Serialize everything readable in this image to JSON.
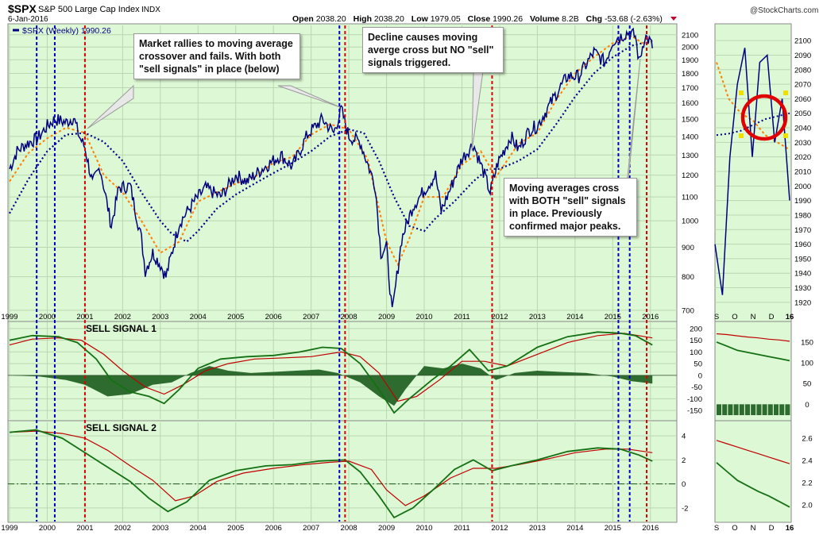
{
  "header": {
    "symbol": "$SPX",
    "name": "S&P 500 Large Cap Index",
    "exchange": "INDX",
    "date": "6-Jan-2016",
    "open_label": "Open",
    "open": "2038.20",
    "high_label": "High",
    "high": "2038.20",
    "low_label": "Low",
    "low": "1979.05",
    "close_label": "Close",
    "close": "1990.26",
    "volume_label": "Volume",
    "volume": "8.2B",
    "chg_label": "Chg",
    "chg": "-53.68 (-2.63%)",
    "watermark": "@StockCharts.com",
    "legend": "$SPX (Weekly) 1990.26"
  },
  "callouts": {
    "c1": "Market rallies to moving average crossover and fails. With both \"sell signals\" in place (below)",
    "c2": "Decline causes moving averge cross but NO \"sell\" signals triggered.",
    "c3": "Moving averages cross with BOTH \"sell\" signals in place. Previously confirmed major peaks."
  },
  "chart_data": [
    {
      "type": "line",
      "id": "price",
      "scale": "log",
      "ylim": [
        680,
        2180
      ],
      "yticks": [
        700,
        800,
        900,
        1000,
        1100,
        1200,
        1300,
        1400,
        1500,
        1600,
        1700,
        1800,
        1900,
        2000,
        2100
      ],
      "x_labels": [
        "1999",
        "2000",
        "2001",
        "2002",
        "2003",
        "2004",
        "2005",
        "2006",
        "2007",
        "2008",
        "2009",
        "2010",
        "2011",
        "2012",
        "2013",
        "2014",
        "2015",
        "2016"
      ],
      "x_range": [
        1999.0,
        2016.7
      ],
      "price_points": [
        [
          1999.0,
          1230
        ],
        [
          1999.2,
          1320
        ],
        [
          1999.45,
          1360
        ],
        [
          1999.75,
          1390
        ],
        [
          2000.0,
          1460
        ],
        [
          2000.2,
          1500
        ],
        [
          2000.5,
          1480
        ],
        [
          2000.7,
          1510
        ],
        [
          2000.85,
          1400
        ],
        [
          2001.0,
          1340
        ],
        [
          2001.2,
          1160
        ],
        [
          2001.4,
          1240
        ],
        [
          2001.7,
          980
        ],
        [
          2001.9,
          1140
        ],
        [
          2002.2,
          1150
        ],
        [
          2002.5,
          930
        ],
        [
          2002.6,
          820
        ],
        [
          2002.8,
          880
        ],
        [
          2003.0,
          840
        ],
        [
          2003.15,
          800
        ],
        [
          2003.5,
          990
        ],
        [
          2003.9,
          1080
        ],
        [
          2004.2,
          1140
        ],
        [
          2004.6,
          1100
        ],
        [
          2005.0,
          1200
        ],
        [
          2005.3,
          1170
        ],
        [
          2005.7,
          1230
        ],
        [
          2006.2,
          1300
        ],
        [
          2006.5,
          1240
        ],
        [
          2006.9,
          1410
        ],
        [
          2007.3,
          1500
        ],
        [
          2007.6,
          1420
        ],
        [
          2007.8,
          1560
        ],
        [
          2008.0,
          1400
        ],
        [
          2008.3,
          1370
        ],
        [
          2008.7,
          1150
        ],
        [
          2008.85,
          880
        ],
        [
          2009.0,
          900
        ],
        [
          2009.15,
          690
        ],
        [
          2009.4,
          930
        ],
        [
          2009.7,
          1060
        ],
        [
          2010.0,
          1130
        ],
        [
          2010.3,
          1200
        ],
        [
          2010.45,
          1040
        ],
        [
          2010.7,
          1140
        ],
        [
          2011.0,
          1280
        ],
        [
          2011.3,
          1360
        ],
        [
          2011.6,
          1200
        ],
        [
          2011.75,
          1120
        ],
        [
          2011.95,
          1260
        ],
        [
          2012.3,
          1400
        ],
        [
          2012.5,
          1330
        ],
        [
          2012.8,
          1440
        ],
        [
          2013.0,
          1460
        ],
        [
          2013.5,
          1660
        ],
        [
          2013.8,
          1780
        ],
        [
          2014.1,
          1780
        ],
        [
          2014.5,
          1960
        ],
        [
          2014.8,
          1880
        ],
        [
          2015.0,
          2050
        ],
        [
          2015.4,
          2120
        ],
        [
          2015.6,
          2090
        ],
        [
          2015.7,
          1880
        ],
        [
          2015.85,
          2090
        ],
        [
          2016.0,
          2040
        ],
        [
          2016.05,
          1990
        ]
      ],
      "ma_short_points": [
        [
          1999.0,
          1170
        ],
        [
          1999.5,
          1310
        ],
        [
          2000.0,
          1390
        ],
        [
          2000.5,
          1450
        ],
        [
          2001.0,
          1420
        ],
        [
          2001.5,
          1200
        ],
        [
          2002.0,
          1120
        ],
        [
          2002.5,
          1000
        ],
        [
          2003.0,
          880
        ],
        [
          2003.5,
          920
        ],
        [
          2004.0,
          1080
        ],
        [
          2004.5,
          1120
        ],
        [
          2005.0,
          1160
        ],
        [
          2005.5,
          1190
        ],
        [
          2006.0,
          1260
        ],
        [
          2006.5,
          1290
        ],
        [
          2007.0,
          1410
        ],
        [
          2007.5,
          1470
        ],
        [
          2008.0,
          1440
        ],
        [
          2008.5,
          1280
        ],
        [
          2009.0,
          920
        ],
        [
          2009.3,
          840
        ],
        [
          2009.6,
          930
        ],
        [
          2010.0,
          1100
        ],
        [
          2010.5,
          1100
        ],
        [
          2011.0,
          1250
        ],
        [
          2011.5,
          1320
        ],
        [
          2011.9,
          1190
        ],
        [
          2012.5,
          1360
        ],
        [
          2013.0,
          1420
        ],
        [
          2013.5,
          1620
        ],
        [
          2014.0,
          1800
        ],
        [
          2014.5,
          1920
        ],
        [
          2015.0,
          2030
        ],
        [
          2015.5,
          2090
        ],
        [
          2015.8,
          2030
        ],
        [
          2016.05,
          2045
        ]
      ],
      "ma_long_points": [
        [
          1999.0,
          1030
        ],
        [
          1999.5,
          1180
        ],
        [
          2000.0,
          1320
        ],
        [
          2000.5,
          1410
        ],
        [
          2001.0,
          1420
        ],
        [
          2001.5,
          1370
        ],
        [
          2002.0,
          1270
        ],
        [
          2002.5,
          1120
        ],
        [
          2003.0,
          1000
        ],
        [
          2003.3,
          950
        ],
        [
          2003.7,
          920
        ],
        [
          2004.0,
          960
        ],
        [
          2004.5,
          1050
        ],
        [
          2005.0,
          1110
        ],
        [
          2005.5,
          1160
        ],
        [
          2006.0,
          1210
        ],
        [
          2006.5,
          1260
        ],
        [
          2007.0,
          1320
        ],
        [
          2007.5,
          1400
        ],
        [
          2008.0,
          1440
        ],
        [
          2008.4,
          1420
        ],
        [
          2008.8,
          1270
        ],
        [
          2009.2,
          1100
        ],
        [
          2009.6,
          980
        ],
        [
          2010.0,
          960
        ],
        [
          2010.3,
          1010
        ],
        [
          2010.8,
          1080
        ],
        [
          2011.3,
          1170
        ],
        [
          2011.7,
          1230
        ],
        [
          2012.0,
          1230
        ],
        [
          2012.5,
          1270
        ],
        [
          2013.0,
          1330
        ],
        [
          2013.5,
          1470
        ],
        [
          2014.0,
          1640
        ],
        [
          2014.5,
          1800
        ],
        [
          2015.0,
          1920
        ],
        [
          2015.5,
          2010
        ],
        [
          2016.05,
          2050
        ]
      ],
      "blue_lines": [
        1999.72,
        2000.2,
        2007.75,
        2015.15,
        2015.45
      ],
      "red_lines": [
        2001.0,
        2007.9,
        2011.8,
        2015.9
      ]
    },
    {
      "type": "line",
      "id": "price_zoom",
      "ylim": [
        1915,
        2105
      ],
      "yticks": [
        1920,
        1930,
        1940,
        1950,
        1960,
        1970,
        1980,
        1990,
        2000,
        2010,
        2020,
        2030,
        2040,
        2050,
        2060,
        2070,
        2080,
        2090,
        2100
      ],
      "x_labels": [
        "S",
        "O",
        "N",
        "D",
        "16"
      ],
      "price": [
        1960,
        1925,
        2020,
        2070,
        2095,
        2020,
        2085,
        2090,
        2030,
        2060,
        1990
      ],
      "ma_short": [
        2085,
        2060,
        2050,
        2045,
        2035,
        2030,
        2025
      ],
      "ma_long": [
        2035,
        2036,
        2038,
        2042,
        2046,
        2048,
        2050
      ]
    },
    {
      "type": "area",
      "id": "sell_signal_1",
      "title": "SELL SIGNAL 1",
      "ylim": [
        -180,
        220
      ],
      "yticks": [
        -150,
        -100,
        -50,
        0,
        50,
        100,
        150,
        200
      ],
      "green_points": [
        [
          1999.0,
          150
        ],
        [
          1999.6,
          170
        ],
        [
          2000.3,
          165
        ],
        [
          2000.8,
          140
        ],
        [
          2001.3,
          70
        ],
        [
          2001.7,
          -20
        ],
        [
          2002.2,
          -70
        ],
        [
          2002.7,
          -90
        ],
        [
          2003.1,
          -120
        ],
        [
          2003.5,
          -60
        ],
        [
          2004.0,
          30
        ],
        [
          2004.6,
          70
        ],
        [
          2005.3,
          80
        ],
        [
          2006.0,
          85
        ],
        [
          2006.7,
          100
        ],
        [
          2007.3,
          120
        ],
        [
          2007.8,
          115
        ],
        [
          2008.3,
          50
        ],
        [
          2008.8,
          -60
        ],
        [
          2009.2,
          -160
        ],
        [
          2009.6,
          -100
        ],
        [
          2010.2,
          -20
        ],
        [
          2010.7,
          40
        ],
        [
          2011.2,
          110
        ],
        [
          2011.7,
          20
        ],
        [
          2012.2,
          40
        ],
        [
          2013.0,
          120
        ],
        [
          2013.8,
          165
        ],
        [
          2014.6,
          185
        ],
        [
          2015.2,
          180
        ],
        [
          2015.6,
          170
        ],
        [
          2016.05,
          130
        ]
      ],
      "red_points": [
        [
          1999.0,
          130
        ],
        [
          1999.6,
          155
        ],
        [
          2000.3,
          160
        ],
        [
          2000.9,
          150
        ],
        [
          2001.5,
          90
        ],
        [
          2002.0,
          20
        ],
        [
          2002.6,
          -50
        ],
        [
          2003.1,
          -80
        ],
        [
          2003.6,
          -40
        ],
        [
          2004.2,
          20
        ],
        [
          2004.8,
          50
        ],
        [
          2005.5,
          70
        ],
        [
          2006.3,
          75
        ],
        [
          2007.0,
          80
        ],
        [
          2007.8,
          100
        ],
        [
          2008.3,
          80
        ],
        [
          2008.8,
          10
        ],
        [
          2009.3,
          -110
        ],
        [
          2009.8,
          -90
        ],
        [
          2010.4,
          -20
        ],
        [
          2011.0,
          60
        ],
        [
          2011.6,
          60
        ],
        [
          2012.2,
          40
        ],
        [
          2013.0,
          90
        ],
        [
          2013.8,
          140
        ],
        [
          2014.6,
          170
        ],
        [
          2015.3,
          180
        ],
        [
          2016.05,
          160
        ]
      ],
      "histogram_points": [
        [
          1999.0,
          0
        ],
        [
          1999.8,
          -5
        ],
        [
          2000.5,
          -20
        ],
        [
          2001.0,
          -40
        ],
        [
          2001.6,
          -90
        ],
        [
          2002.2,
          -80
        ],
        [
          2002.8,
          -40
        ],
        [
          2003.3,
          -30
        ],
        [
          2003.8,
          10
        ],
        [
          2004.3,
          40
        ],
        [
          2004.8,
          20
        ],
        [
          2005.4,
          10
        ],
        [
          2006.0,
          15
        ],
        [
          2006.6,
          20
        ],
        [
          2007.2,
          25
        ],
        [
          2007.7,
          10
        ],
        [
          2008.3,
          -30
        ],
        [
          2008.8,
          -90
        ],
        [
          2009.2,
          -130
        ],
        [
          2009.5,
          -60
        ],
        [
          2010.0,
          40
        ],
        [
          2010.5,
          30
        ],
        [
          2011.0,
          50
        ],
        [
          2011.5,
          30
        ],
        [
          2011.9,
          -20
        ],
        [
          2012.4,
          10
        ],
        [
          2013.0,
          20
        ],
        [
          2013.6,
          15
        ],
        [
          2014.3,
          10
        ],
        [
          2015.0,
          -5
        ],
        [
          2015.5,
          -25
        ],
        [
          2016.05,
          -35
        ]
      ],
      "zoom_green": [
        150,
        140,
        130,
        125,
        120,
        115,
        110,
        105
      ],
      "zoom_red": [
        170,
        168,
        165,
        162,
        160,
        157,
        155,
        152
      ],
      "zoom_yticks": [
        0,
        50,
        100,
        150
      ]
    },
    {
      "type": "line",
      "id": "sell_signal_2",
      "title": "SELL SIGNAL 2",
      "ylim": [
        -3,
        5
      ],
      "yticks": [
        -2,
        0,
        2,
        4
      ],
      "green_points": [
        [
          1999.0,
          4.3
        ],
        [
          1999.7,
          4.5
        ],
        [
          2000.4,
          3.8
        ],
        [
          2001.0,
          2.6
        ],
        [
          2001.6,
          1.4
        ],
        [
          2002.2,
          0.2
        ],
        [
          2002.7,
          -1.2
        ],
        [
          2003.2,
          -2.3
        ],
        [
          2003.7,
          -1.5
        ],
        [
          2004.3,
          0.3
        ],
        [
          2005.0,
          1.1
        ],
        [
          2005.8,
          1.5
        ],
        [
          2006.5,
          1.6
        ],
        [
          2007.2,
          1.9
        ],
        [
          2007.9,
          2.0
        ],
        [
          2008.3,
          1.0
        ],
        [
          2008.8,
          -1.0
        ],
        [
          2009.2,
          -2.8
        ],
        [
          2009.7,
          -2.0
        ],
        [
          2010.3,
          -0.3
        ],
        [
          2010.8,
          1.2
        ],
        [
          2011.3,
          2.0
        ],
        [
          2011.8,
          1.1
        ],
        [
          2012.3,
          1.5
        ],
        [
          2013.0,
          2.0
        ],
        [
          2013.8,
          2.7
        ],
        [
          2014.6,
          3.0
        ],
        [
          2015.2,
          2.9
        ],
        [
          2015.7,
          2.4
        ],
        [
          2016.05,
          1.9
        ]
      ],
      "red_points": [
        [
          1999.0,
          4.3
        ],
        [
          1999.7,
          4.4
        ],
        [
          2000.4,
          4.2
        ],
        [
          2001.0,
          3.8
        ],
        [
          2001.6,
          2.8
        ],
        [
          2002.2,
          1.5
        ],
        [
          2002.8,
          0.3
        ],
        [
          2003.4,
          -1.4
        ],
        [
          2003.9,
          -1.0
        ],
        [
          2004.5,
          0.2
        ],
        [
          2005.2,
          0.9
        ],
        [
          2006.0,
          1.3
        ],
        [
          2006.8,
          1.6
        ],
        [
          2007.5,
          1.8
        ],
        [
          2008.0,
          1.9
        ],
        [
          2008.6,
          1.2
        ],
        [
          2009.0,
          -0.5
        ],
        [
          2009.5,
          -1.8
        ],
        [
          2010.0,
          -1.0
        ],
        [
          2010.7,
          0.5
        ],
        [
          2011.3,
          1.3
        ],
        [
          2011.9,
          1.3
        ],
        [
          2012.5,
          1.6
        ],
        [
          2013.3,
          2.1
        ],
        [
          2014.0,
          2.6
        ],
        [
          2014.8,
          2.9
        ],
        [
          2015.4,
          2.9
        ],
        [
          2016.05,
          2.6
        ]
      ],
      "zoom_green": [
        2.38,
        2.3,
        2.22,
        2.17,
        2.12,
        2.08,
        2.03,
        1.98
      ],
      "zoom_red": [
        2.58,
        2.55,
        2.52,
        2.49,
        2.46,
        2.43,
        2.4,
        2.37
      ],
      "zoom_yticks": [
        2.0,
        2.2,
        2.4,
        2.6
      ]
    }
  ]
}
